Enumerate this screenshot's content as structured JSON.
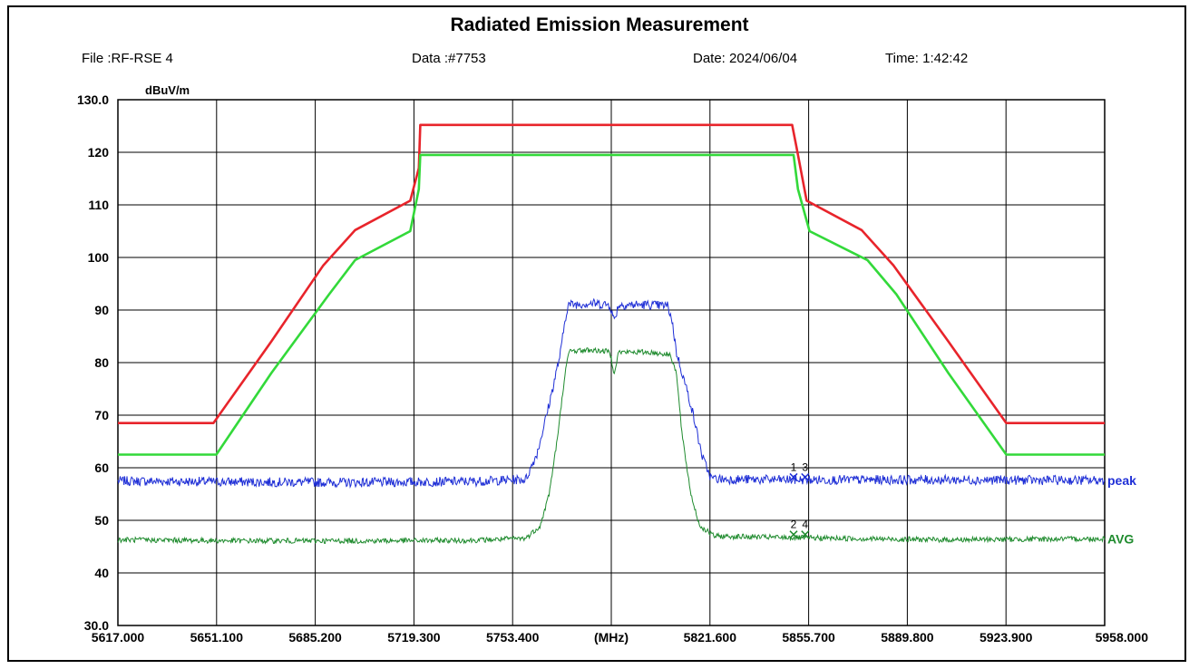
{
  "chart_data": {
    "type": "line",
    "title": "Radiated Emission Measurement",
    "header": {
      "file": "File :RF-RSE 4",
      "data": "Data :#7753",
      "date": "Date: 2024/06/04",
      "time": "Time: 1:42:42"
    },
    "ylabel": "dBuV/m",
    "xlabel": "(MHz)",
    "xlim": [
      5617.0,
      5958.0
    ],
    "ylim": [
      30.0,
      130.0
    ],
    "grid": true,
    "y_ticks": [
      {
        "value": 130,
        "label": "130.0"
      },
      {
        "value": 120,
        "label": "120"
      },
      {
        "value": 110,
        "label": "110"
      },
      {
        "value": 100,
        "label": "100"
      },
      {
        "value": 90,
        "label": "90"
      },
      {
        "value": 80,
        "label": "80"
      },
      {
        "value": 70,
        "label": "70"
      },
      {
        "value": 60,
        "label": "60"
      },
      {
        "value": 50,
        "label": "50"
      },
      {
        "value": 40,
        "label": "40"
      },
      {
        "value": 30,
        "label": "30.0"
      }
    ],
    "x_ticks": [
      {
        "value": 5617.0,
        "label": "5617.000"
      },
      {
        "value": 5651.1,
        "label": "5651.100"
      },
      {
        "value": 5685.2,
        "label": "5685.200"
      },
      {
        "value": 5719.3,
        "label": "5719.300"
      },
      {
        "value": 5753.4,
        "label": "5753.400"
      },
      {
        "value": 5787.5,
        "label": "(MHz)"
      },
      {
        "value": 5821.6,
        "label": "5821.600"
      },
      {
        "value": 5855.7,
        "label": "5855.700"
      },
      {
        "value": 5889.8,
        "label": "5889.800"
      },
      {
        "value": 5923.9,
        "label": "5923.900"
      },
      {
        "value": 5958.0,
        "label": "5958.000"
      }
    ],
    "series": [
      {
        "color": "#e8242b",
        "x": [
          5617.0,
          5650.0,
          5670.0,
          5688.0,
          5699.0,
          5718.0,
          5721.0,
          5721.5,
          5850.0,
          5851.5,
          5855.0,
          5874.0,
          5885.0,
          5904.0,
          5924.0,
          5958.0
        ],
        "y": [
          68.5,
          68.5,
          84.0,
          98.5,
          105.2,
          110.8,
          117.0,
          125.2,
          125.2,
          121.0,
          110.8,
          105.2,
          98.5,
          84.0,
          68.5,
          68.5
        ]
      },
      {
        "color": "#33d93a",
        "x": [
          5617.0,
          5651.0,
          5670.0,
          5690.0,
          5699.0,
          5718.0,
          5721.0,
          5721.5,
          5850.5,
          5852.0,
          5856.0,
          5876.0,
          5886.0,
          5904.0,
          5924.0,
          5958.0
        ],
        "y": [
          62.5,
          62.5,
          78.0,
          93.0,
          99.5,
          105.0,
          113.0,
          119.5,
          119.5,
          113.0,
          105.0,
          99.5,
          93.0,
          78.0,
          62.5,
          62.5
        ]
      },
      {
        "name": "peak",
        "color": "#1f2fd6",
        "x": [
          5617.0,
          5660.0,
          5700.0,
          5740.0,
          5758.0,
          5762.0,
          5766.0,
          5770.0,
          5771.5,
          5772.5,
          5780.0,
          5787.0,
          5788.5,
          5790.0,
          5800.0,
          5807.0,
          5808.5,
          5810.0,
          5815.0,
          5819.0,
          5822.0,
          5826.0,
          5850.0,
          5900.0,
          5958.0
        ],
        "y": [
          57.5,
          57.3,
          57.2,
          57.4,
          57.8,
          63.0,
          72.0,
          82.0,
          88.0,
          91.0,
          91.3,
          91.0,
          88.0,
          91.0,
          91.0,
          90.8,
          88.0,
          82.0,
          72.0,
          62.0,
          58.0,
          57.8,
          57.7,
          57.7,
          57.6
        ]
      },
      {
        "name": "AVG",
        "color": "#1f8b2e",
        "x": [
          5617.0,
          5660.0,
          5700.0,
          5740.0,
          5758.0,
          5763.0,
          5766.0,
          5769.0,
          5771.5,
          5773.0,
          5780.0,
          5787.0,
          5788.5,
          5790.0,
          5800.0,
          5808.0,
          5810.0,
          5812.0,
          5815.0,
          5818.0,
          5823.0,
          5850.0,
          5900.0,
          5958.0
        ],
        "y": [
          46.3,
          46.1,
          46.1,
          46.2,
          46.6,
          49.0,
          55.0,
          66.0,
          78.0,
          82.2,
          82.4,
          82.1,
          78.0,
          82.0,
          82.0,
          81.5,
          78.0,
          66.0,
          55.0,
          49.0,
          47.0,
          46.7,
          46.3,
          46.5
        ]
      }
    ],
    "markers": [
      {
        "label": "1",
        "x": 5850.5,
        "y": 58.2,
        "color": "#1f2fd6"
      },
      {
        "label": "3",
        "x": 5854.5,
        "y": 58.2,
        "color": "#1f2fd6"
      },
      {
        "label": "2",
        "x": 5850.5,
        "y": 47.3,
        "color": "#1f8b2e"
      },
      {
        "label": "4",
        "x": 5854.5,
        "y": 47.3,
        "color": "#1f8b2e"
      }
    ]
  }
}
